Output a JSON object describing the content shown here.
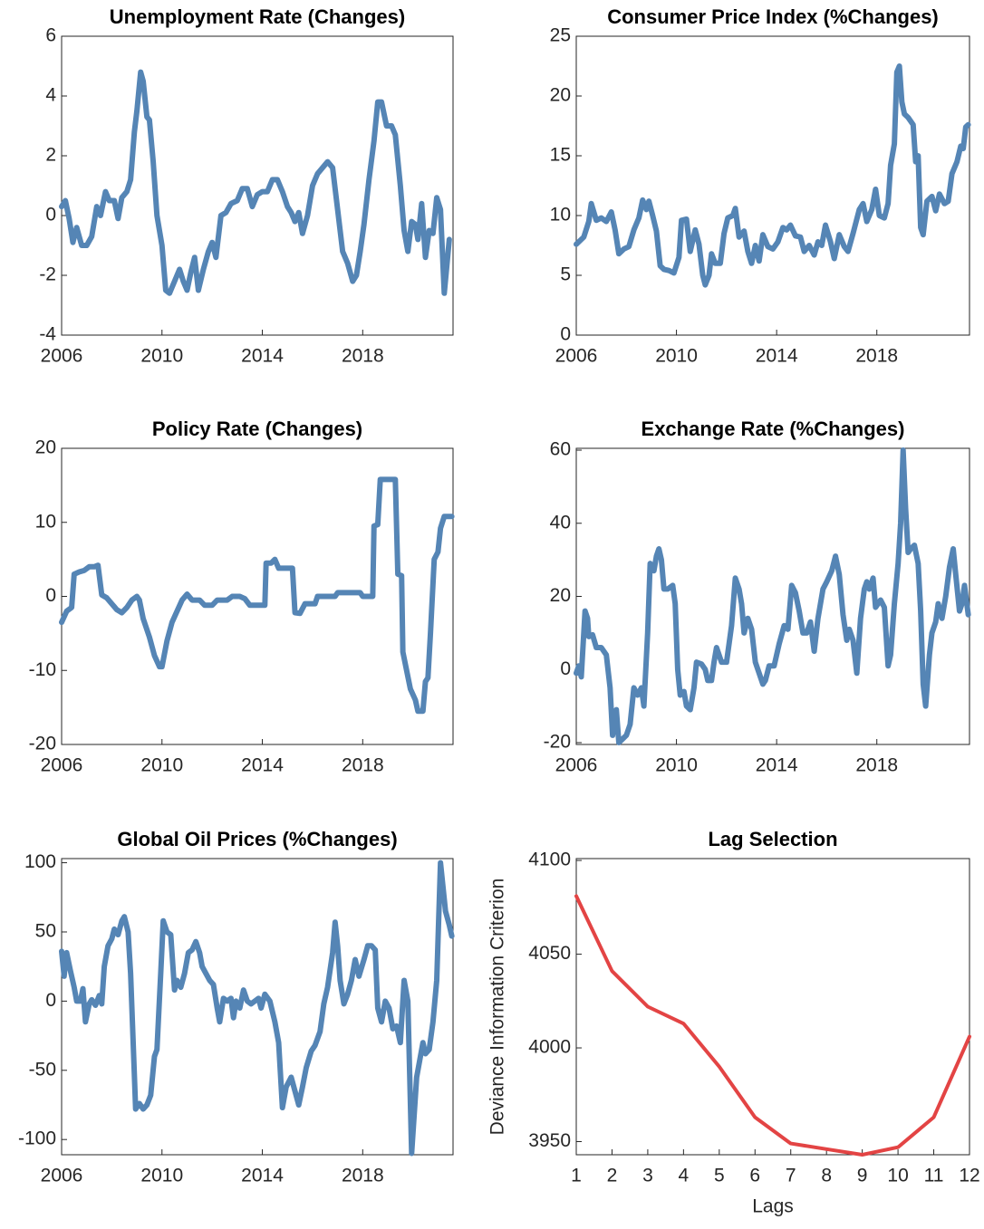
{
  "chart_data": [
    {
      "type": "line",
      "title": "Unemployment Rate (Changes)",
      "color": "#5585b5",
      "xlim": [
        2006,
        2021.6
      ],
      "xticks": [
        2006,
        2010,
        2014,
        2018
      ],
      "ylim": [
        -4,
        6
      ],
      "yticks": [
        -4,
        -2,
        0,
        2,
        4,
        6
      ],
      "x": [
        2006.0,
        2006.15,
        2006.3,
        2006.45,
        2006.6,
        2006.8,
        2007.0,
        2007.2,
        2007.4,
        2007.55,
        2007.75,
        2007.9,
        2008.1,
        2008.25,
        2008.4,
        2008.6,
        2008.75,
        2008.9,
        2009.0,
        2009.15,
        2009.25,
        2009.4,
        2009.5,
        2009.65,
        2009.8,
        2010.0,
        2010.15,
        2010.3,
        2010.5,
        2010.7,
        2010.85,
        2011.0,
        2011.15,
        2011.3,
        2011.45,
        2011.65,
        2011.85,
        2012.0,
        2012.15,
        2012.35,
        2012.55,
        2012.75,
        2013.0,
        2013.2,
        2013.4,
        2013.6,
        2013.8,
        2014.0,
        2014.2,
        2014.4,
        2014.6,
        2014.8,
        2015.0,
        2015.15,
        2015.3,
        2015.45,
        2015.6,
        2015.8,
        2016.0,
        2016.2,
        2016.4,
        2016.6,
        2016.8,
        2017.0,
        2017.2,
        2017.4,
        2017.6,
        2017.75,
        2017.9,
        2018.05,
        2018.25,
        2018.45,
        2018.6,
        2018.75,
        2018.95,
        2019.15,
        2019.3,
        2019.5,
        2019.65,
        2019.8,
        2019.95,
        2020.1,
        2020.2,
        2020.35,
        2020.5,
        2020.65,
        2020.8,
        2020.95,
        2021.1,
        2021.25,
        2021.45
      ],
      "values": [
        0.3,
        0.5,
        -0.1,
        -0.9,
        -0.4,
        -1.0,
        -1.0,
        -0.7,
        0.3,
        0,
        0.8,
        0.5,
        0.5,
        -0.1,
        0.6,
        0.8,
        1.2,
        2.8,
        3.5,
        4.8,
        4.5,
        3.3,
        3.2,
        1.8,
        0,
        -1.0,
        -2.5,
        -2.6,
        -2.2,
        -1.8,
        -2.2,
        -2.5,
        -1.9,
        -1.4,
        -2.5,
        -1.8,
        -1.2,
        -0.9,
        -1.4,
        0,
        0.1,
        0.4,
        0.5,
        0.9,
        0.9,
        0.3,
        0.7,
        0.8,
        0.8,
        1.2,
        1.2,
        0.8,
        0.3,
        0.1,
        -0.2,
        0.1,
        -0.6,
        0,
        1,
        1.4,
        1.6,
        1.8,
        1.6,
        0.2,
        -1.2,
        -1.6,
        -2.2,
        -2.0,
        -1.2,
        -0.3,
        1.2,
        2.5,
        3.8,
        3.8,
        3.0,
        3.0,
        2.7,
        1.0,
        -0.5,
        -1.2,
        -0.2,
        -0.3,
        -0.8,
        0.4,
        -1.4,
        -0.5,
        -0.6,
        0.6,
        0.2,
        -2.6,
        -0.8
      ]
    },
    {
      "type": "line",
      "title": "Consumer Price Index (%Changes)",
      "color": "#5585b5",
      "xlim": [
        2006,
        2021.7
      ],
      "xticks": [
        2006,
        2010,
        2014,
        2018
      ],
      "ylim": [
        0,
        25
      ],
      "yticks": [
        0,
        5,
        10,
        15,
        20,
        25
      ],
      "x": [
        2006.0,
        2006.3,
        2006.5,
        2006.6,
        2006.8,
        2007.0,
        2007.2,
        2007.4,
        2007.55,
        2007.7,
        2007.9,
        2008.1,
        2008.3,
        2008.5,
        2008.65,
        2008.8,
        2008.9,
        2009.05,
        2009.2,
        2009.35,
        2009.5,
        2009.7,
        2009.9,
        2010.1,
        2010.2,
        2010.4,
        2010.55,
        2010.75,
        2010.9,
        2011.05,
        2011.15,
        2011.3,
        2011.4,
        2011.55,
        2011.75,
        2011.9,
        2012.05,
        2012.25,
        2012.35,
        2012.5,
        2012.7,
        2012.85,
        2013.0,
        2013.15,
        2013.3,
        2013.45,
        2013.65,
        2013.85,
        2014.05,
        2014.25,
        2014.4,
        2014.55,
        2014.75,
        2014.95,
        2015.1,
        2015.3,
        2015.5,
        2015.65,
        2015.8,
        2015.95,
        2016.15,
        2016.3,
        2016.5,
        2016.7,
        2016.85,
        2017.05,
        2017.3,
        2017.45,
        2017.6,
        2017.8,
        2017.95,
        2018.1,
        2018.3,
        2018.45,
        2018.55,
        2018.7,
        2018.8,
        2018.9,
        2019.0,
        2019.1,
        2019.25,
        2019.45,
        2019.55,
        2019.65,
        2019.75,
        2019.85,
        2020.0,
        2020.2,
        2020.35,
        2020.5,
        2020.7,
        2020.85,
        2021.0,
        2021.2,
        2021.35,
        2021.45,
        2021.55,
        2021.65
      ],
      "values": [
        7.6,
        8.2,
        9.5,
        11,
        9.6,
        9.8,
        9.5,
        10.3,
        8.8,
        6.8,
        7.2,
        7.4,
        8.8,
        9.8,
        11.3,
        10.5,
        11.2,
        10.0,
        8.7,
        5.8,
        5.5,
        5.4,
        5.2,
        6.5,
        9.6,
        9.7,
        7.0,
        8.8,
        7.6,
        5.0,
        4.2,
        5.0,
        6.8,
        6.0,
        6.0,
        8.5,
        9.8,
        10.0,
        10.6,
        8.2,
        8.7,
        7.0,
        6.0,
        7.5,
        6.2,
        8.4,
        7.4,
        7.2,
        7.8,
        9.0,
        8.8,
        9.2,
        8.3,
        8.2,
        7.0,
        7.5,
        6.7,
        7.8,
        7.5,
        9.2,
        7.8,
        6.4,
        8.4,
        7.4,
        7.0,
        8.5,
        10.5,
        11.0,
        9.5,
        10.5,
        12.2,
        10.0,
        9.8,
        11.0,
        14.2,
        16,
        22,
        22.5,
        19.5,
        18.5,
        18.2,
        17.6,
        14.5,
        15.0,
        9.0,
        8.4,
        11.2,
        11.6,
        10.4,
        11.8,
        11.0,
        11.2,
        13.5,
        14.5,
        15.8,
        15.6,
        17.4,
        17.6
      ]
    },
    {
      "type": "line",
      "title": "Policy Rate (Changes)",
      "color": "#5585b5",
      "xlim": [
        2006,
        2021.6
      ],
      "xticks": [
        2006,
        2010,
        2014,
        2018
      ],
      "ylim": [
        -20,
        20
      ],
      "yticks": [
        -20,
        -10,
        0,
        10,
        20
      ],
      "x": [
        2006.0,
        2006.2,
        2006.4,
        2006.5,
        2006.7,
        2006.9,
        2007.1,
        2007.3,
        2007.45,
        2007.6,
        2007.8,
        2008.0,
        2008.2,
        2008.4,
        2008.6,
        2008.8,
        2009.0,
        2009.1,
        2009.25,
        2009.5,
        2009.7,
        2009.9,
        2010.0,
        2010.2,
        2010.4,
        2010.6,
        2010.8,
        2011.0,
        2011.2,
        2011.5,
        2011.7,
        2012.0,
        2012.2,
        2012.6,
        2012.8,
        2013.1,
        2013.3,
        2013.5,
        2013.9,
        2014.1,
        2014.15,
        2014.35,
        2014.5,
        2014.65,
        2015.2,
        2015.3,
        2015.5,
        2015.7,
        2016.1,
        2016.2,
        2016.9,
        2017.0,
        2017.9,
        2018.0,
        2018.4,
        2018.45,
        2018.6,
        2018.7,
        2019.3,
        2019.4,
        2019.55,
        2019.6,
        2019.75,
        2019.9,
        2020.1,
        2020.2,
        2020.4,
        2020.5,
        2020.6,
        2020.7,
        2020.85,
        2021.0,
        2021.1,
        2021.25,
        2021.55
      ],
      "values": [
        -3.5,
        -2,
        -1.5,
        3,
        3.3,
        3.5,
        4,
        4,
        4.2,
        0.2,
        -0.2,
        -1,
        -1.8,
        -2.2,
        -1.5,
        -0.5,
        0,
        -0.5,
        -3,
        -5.5,
        -8,
        -9.5,
        -9.5,
        -6,
        -3.5,
        -2,
        -0.5,
        0.3,
        -0.5,
        -0.5,
        -1.2,
        -1.2,
        -0.5,
        -0.5,
        0,
        0,
        -0.3,
        -1.2,
        -1.2,
        -1.2,
        4.5,
        4.5,
        5.0,
        3.8,
        3.8,
        -2.2,
        -2.3,
        -1.0,
        -1.0,
        0,
        0,
        0.5,
        0.5,
        0,
        0,
        9.5,
        9.7,
        15.8,
        15.8,
        3,
        2.8,
        -7.5,
        -10,
        -12.5,
        -14,
        -15.5,
        -15.5,
        -11.5,
        -11,
        -5,
        5,
        6,
        9.2,
        10.8,
        10.8
      ]
    },
    {
      "type": "line",
      "title": "Exchange Rate (%Changes)",
      "color": "#5585b5",
      "xlim": [
        2006,
        2021.7
      ],
      "xticks": [
        2006,
        2010,
        2014,
        2018
      ],
      "ylim": [
        -20.5,
        60.5
      ],
      "yticks": [
        -20,
        0,
        20,
        40,
        60
      ],
      "x": [
        2006.0,
        2006.1,
        2006.2,
        2006.35,
        2006.45,
        2006.5,
        2006.65,
        2006.8,
        2007.0,
        2007.2,
        2007.35,
        2007.45,
        2007.6,
        2007.7,
        2007.85,
        2008.0,
        2008.15,
        2008.3,
        2008.45,
        2008.6,
        2008.7,
        2008.85,
        2008.95,
        2009.1,
        2009.2,
        2009.3,
        2009.4,
        2009.5,
        2009.65,
        2009.85,
        2009.95,
        2010.05,
        2010.15,
        2010.3,
        2010.4,
        2010.55,
        2010.7,
        2010.8,
        2011.0,
        2011.15,
        2011.25,
        2011.4,
        2011.5,
        2011.6,
        2011.8,
        2012.0,
        2012.2,
        2012.35,
        2012.5,
        2012.6,
        2012.7,
        2012.85,
        2013.0,
        2013.15,
        2013.3,
        2013.45,
        2013.55,
        2013.7,
        2013.9,
        2014.1,
        2014.3,
        2014.45,
        2014.6,
        2014.75,
        2014.9,
        2015.05,
        2015.2,
        2015.35,
        2015.5,
        2015.65,
        2015.85,
        2016.0,
        2016.2,
        2016.35,
        2016.5,
        2016.65,
        2016.8,
        2016.9,
        2017.05,
        2017.2,
        2017.35,
        2017.5,
        2017.6,
        2017.7,
        2017.85,
        2017.95,
        2018.15,
        2018.3,
        2018.45,
        2018.55,
        2018.7,
        2018.85,
        2018.95,
        2019.05,
        2019.15,
        2019.25,
        2019.35,
        2019.5,
        2019.65,
        2019.75,
        2019.85,
        2019.95,
        2020.1,
        2020.2,
        2020.35,
        2020.45,
        2020.6,
        2020.75,
        2020.9,
        2021.05,
        2021.15,
        2021.3,
        2021.4,
        2021.5,
        2021.65
      ],
      "values": [
        -1,
        1,
        -2,
        16,
        14,
        9,
        9.5,
        6,
        6,
        4,
        -5,
        -18,
        -11,
        -20,
        -19,
        -18,
        -15,
        -5,
        -7,
        -5,
        -10,
        10,
        29,
        27,
        31,
        33,
        30,
        22,
        22,
        23,
        18,
        0,
        -7,
        -6,
        -10,
        -11,
        -5,
        2,
        1.5,
        0,
        -3,
        -3,
        2,
        6,
        2,
        2,
        12,
        25,
        22,
        18,
        10,
        14,
        11,
        2,
        -1,
        -4,
        -3,
        1,
        1,
        7,
        12,
        11,
        23,
        21,
        16,
        10,
        10,
        13,
        5,
        14,
        22,
        24,
        27,
        31,
        26,
        15,
        8,
        11,
        8,
        -1,
        14,
        22,
        24,
        22,
        25,
        17,
        19,
        17,
        1,
        4,
        18,
        29,
        40,
        60,
        44,
        32,
        33,
        34,
        29,
        16,
        -4,
        -10,
        4,
        10,
        13,
        18,
        14,
        20,
        28,
        33,
        26,
        16,
        18,
        23,
        15
      ]
    },
    {
      "type": "line",
      "title": "Global Oil Prices (%Changes)",
      "color": "#5585b5",
      "xlim": [
        2006,
        2021.6
      ],
      "xticks": [
        2006,
        2010,
        2014,
        2018
      ],
      "ylim": [
        -111,
        103
      ],
      "yticks": [
        -100,
        -50,
        0,
        50,
        100
      ],
      "x": [
        2006.0,
        2006.1,
        2006.2,
        2006.35,
        2006.5,
        2006.6,
        2006.75,
        2006.85,
        2006.95,
        2007.1,
        2007.2,
        2007.35,
        2007.5,
        2007.6,
        2007.7,
        2007.85,
        2008.0,
        2008.1,
        2008.25,
        2008.4,
        2008.5,
        2008.65,
        2008.75,
        2008.95,
        2009.1,
        2009.25,
        2009.4,
        2009.55,
        2009.7,
        2009.8,
        2009.95,
        2010.05,
        2010.2,
        2010.35,
        2010.5,
        2010.6,
        2010.75,
        2010.9,
        2011.05,
        2011.2,
        2011.35,
        2011.5,
        2011.6,
        2011.75,
        2011.9,
        2012.05,
        2012.2,
        2012.3,
        2012.45,
        2012.6,
        2012.75,
        2012.85,
        2012.95,
        2013.1,
        2013.25,
        2013.4,
        2013.55,
        2013.7,
        2013.85,
        2013.95,
        2014.1,
        2014.3,
        2014.5,
        2014.65,
        2014.8,
        2014.95,
        2015.15,
        2015.3,
        2015.45,
        2015.6,
        2015.75,
        2015.95,
        2016.1,
        2016.3,
        2016.45,
        2016.6,
        2016.8,
        2016.9,
        2017.0,
        2017.1,
        2017.25,
        2017.4,
        2017.55,
        2017.7,
        2017.85,
        2018.05,
        2018.2,
        2018.35,
        2018.5,
        2018.6,
        2018.75,
        2018.9,
        2019.05,
        2019.2,
        2019.35,
        2019.5,
        2019.65,
        2019.8,
        2019.95,
        2020.15,
        2020.3,
        2020.4,
        2020.5,
        2020.65,
        2020.8,
        2020.95,
        2021.1,
        2021.3,
        2021.45,
        2021.55
      ],
      "values": [
        36,
        18,
        35,
        22,
        10,
        0,
        0,
        9,
        -15,
        -2,
        1,
        -3,
        4,
        -2,
        25,
        40,
        45,
        52,
        48,
        58,
        61,
        50,
        20,
        -78,
        -74,
        -78,
        -75,
        -68,
        -40,
        -35,
        20,
        58,
        50,
        48,
        8,
        15,
        10,
        20,
        35,
        37,
        43,
        35,
        25,
        20,
        15,
        12,
        -5,
        -15,
        2,
        0,
        2,
        -12,
        0,
        -5,
        8,
        0,
        -2,
        0,
        2,
        -5,
        5,
        0,
        -15,
        -30,
        -77,
        -62,
        -55,
        -65,
        -75,
        -62,
        -48,
        -36,
        -32,
        -22,
        -2,
        10,
        35,
        57,
        40,
        15,
        -2,
        5,
        15,
        30,
        18,
        30,
        40,
        40,
        37,
        -5,
        -15,
        0,
        -5,
        -20,
        -18,
        -30,
        15,
        0,
        -110,
        -55,
        -40,
        -30,
        -38,
        -35,
        -15,
        15,
        100,
        65,
        55,
        47
      ]
    },
    {
      "type": "line",
      "title": "Lag Selection",
      "color": "#e34444",
      "xlabel": "Lags",
      "ylabel": "Deviance Information Criterion",
      "xlim": [
        1,
        12
      ],
      "xticks": [
        1,
        2,
        3,
        4,
        5,
        6,
        7,
        8,
        9,
        10,
        11,
        12
      ],
      "ylim": [
        3943,
        4101
      ],
      "yticks": [
        3950,
        4000,
        4050,
        4100
      ],
      "x": [
        1,
        2,
        3,
        4,
        5,
        6,
        7,
        8,
        9,
        10,
        11,
        12
      ],
      "values": [
        4081,
        4041,
        4022,
        4013,
        3990,
        3963,
        3949,
        3946,
        3943,
        3947,
        3963,
        4006
      ]
    }
  ]
}
